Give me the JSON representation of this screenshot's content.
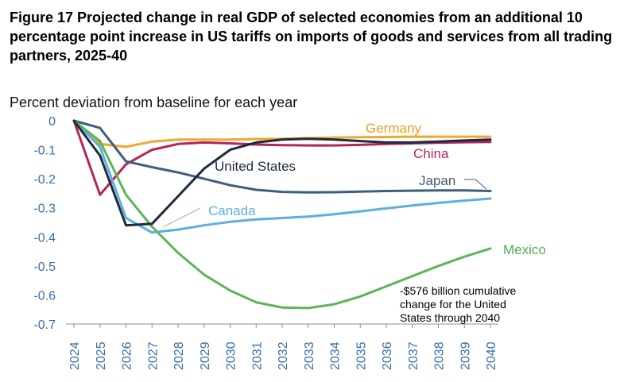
{
  "figure": {
    "title": "Figure 17 Projected change in real GDP of selected economies from an additional 10 percentage point increase in US tariffs on imports of goods and services from all trading partners, 2025-40"
  },
  "chart_data": {
    "type": "line",
    "title": "Figure 17 Projected change in real GDP of selected economies from an additional 10 percentage point increase in US tariffs on imports of goods and services from all trading partners, 2025-40",
    "ylabel": "Percent deviation from baseline for each year",
    "xlabel": "",
    "ylim": [
      -0.7,
      0
    ],
    "yticks": [
      0,
      -0.1,
      -0.2,
      -0.3,
      -0.4,
      -0.5,
      -0.6,
      -0.7
    ],
    "ytick_labels": [
      "0",
      "-0.1",
      "-0.2",
      "-0.3",
      "-0.4",
      "-0.5",
      "-0.6",
      "-0.7"
    ],
    "categories": [
      "2024",
      "2025",
      "2026",
      "2027",
      "2028",
      "2029",
      "2030",
      "2031",
      "2032",
      "2033",
      "2034",
      "2035",
      "2036",
      "2037",
      "2038",
      "2039",
      "2040"
    ],
    "series": [
      {
        "name": "Germany",
        "color": "#F0A830",
        "values": [
          0,
          -0.08,
          -0.09,
          -0.072,
          -0.065,
          -0.065,
          -0.065,
          -0.063,
          -0.062,
          -0.06,
          -0.058,
          -0.057,
          -0.056,
          -0.055,
          -0.055,
          -0.055,
          -0.055
        ]
      },
      {
        "name": "China",
        "color": "#B5245A",
        "values": [
          0,
          -0.255,
          -0.15,
          -0.1,
          -0.08,
          -0.075,
          -0.078,
          -0.082,
          -0.084,
          -0.085,
          -0.085,
          -0.083,
          -0.08,
          -0.078,
          -0.076,
          -0.074,
          -0.073
        ]
      },
      {
        "name": "United States",
        "color": "#1D2B3C",
        "values": [
          0,
          -0.12,
          -0.36,
          -0.355,
          -0.26,
          -0.165,
          -0.1,
          -0.075,
          -0.065,
          -0.062,
          -0.065,
          -0.07,
          -0.075,
          -0.075,
          -0.072,
          -0.068,
          -0.065
        ]
      },
      {
        "name": "Japan",
        "color": "#3F5E7E",
        "values": [
          0,
          -0.025,
          -0.14,
          -0.16,
          -0.178,
          -0.2,
          -0.222,
          -0.238,
          -0.245,
          -0.247,
          -0.246,
          -0.244,
          -0.242,
          -0.241,
          -0.24,
          -0.24,
          -0.242
        ]
      },
      {
        "name": "Canada",
        "color": "#5DAEE0",
        "values": [
          0,
          -0.09,
          -0.335,
          -0.385,
          -0.375,
          -0.36,
          -0.348,
          -0.34,
          -0.335,
          -0.33,
          -0.322,
          -0.312,
          -0.302,
          -0.292,
          -0.283,
          -0.275,
          -0.268
        ]
      },
      {
        "name": "Mexico",
        "color": "#5BB55B",
        "values": [
          0,
          -0.07,
          -0.255,
          -0.365,
          -0.455,
          -0.53,
          -0.585,
          -0.625,
          -0.643,
          -0.645,
          -0.632,
          -0.605,
          -0.57,
          -0.535,
          -0.5,
          -0.468,
          -0.44
        ]
      }
    ],
    "annotation": {
      "lines": [
        "-$576 billion cumulative",
        "change for the United",
        "States through 2040"
      ]
    }
  }
}
